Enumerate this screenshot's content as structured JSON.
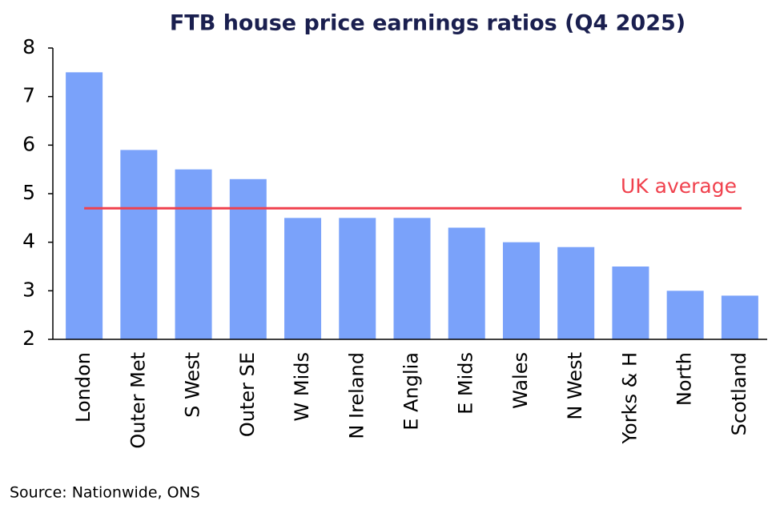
{
  "chart_data": {
    "type": "bar",
    "title": "FTB house price earnings ratios (Q4 2025)",
    "categories": [
      "London",
      "Outer Met",
      "S West",
      "Outer SE",
      "W Mids",
      "N Ireland",
      "E Anglia",
      "E Mids",
      "Wales",
      "N West",
      "Yorks & H",
      "North",
      "Scotland"
    ],
    "values": [
      7.5,
      5.9,
      5.5,
      5.3,
      4.5,
      4.5,
      4.5,
      4.3,
      4.0,
      3.9,
      3.5,
      3.0,
      2.9
    ],
    "color": "#7aa2fa",
    "reference_line": {
      "label": "UK average",
      "value": 4.7,
      "color": "#f0414d"
    },
    "ylim": [
      2,
      8
    ],
    "yticks": [
      2,
      3,
      4,
      5,
      6,
      7,
      8
    ],
    "grid": false,
    "source": "Source: Nationwide, ONS"
  }
}
